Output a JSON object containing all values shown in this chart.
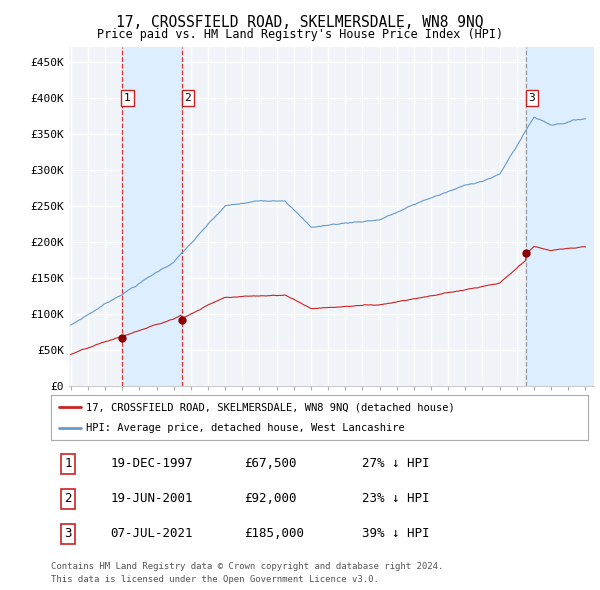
{
  "title": "17, CROSSFIELD ROAD, SKELMERSDALE, WN8 9NQ",
  "subtitle": "Price paid vs. HM Land Registry's House Price Index (HPI)",
  "ylabel_ticks": [
    "£0",
    "£50K",
    "£100K",
    "£150K",
    "£200K",
    "£250K",
    "£300K",
    "£350K",
    "£400K",
    "£450K"
  ],
  "ytick_values": [
    0,
    50000,
    100000,
    150000,
    200000,
    250000,
    300000,
    350000,
    400000,
    450000
  ],
  "xlim_start": 1995.0,
  "xlim_end": 2025.5,
  "ylim": [
    0,
    470000
  ],
  "sale_points": [
    {
      "date": 1997.96,
      "price": 67500,
      "label": "1"
    },
    {
      "date": 2001.47,
      "price": 92000,
      "label": "2"
    },
    {
      "date": 2021.52,
      "price": 185000,
      "label": "3"
    }
  ],
  "red_line_color": "#cc2222",
  "blue_line_color": "#6699cc",
  "vline_color_red": "#dd3333",
  "vline_color_grey": "#999999",
  "sale_marker_color": "#880000",
  "background_color": "#f0f4f8",
  "shade_color": "#ddeeff",
  "grid_color": "#ffffff",
  "legend_entries": [
    "17, CROSSFIELD ROAD, SKELMERSDALE, WN8 9NQ (detached house)",
    "HPI: Average price, detached house, West Lancashire"
  ],
  "table_data": [
    [
      "1",
      "19-DEC-1997",
      "£67,500",
      "27% ↓ HPI"
    ],
    [
      "2",
      "19-JUN-2001",
      "£92,000",
      "23% ↓ HPI"
    ],
    [
      "3",
      "07-JUL-2021",
      "£185,000",
      "39% ↓ HPI"
    ]
  ],
  "footnote1": "Contains HM Land Registry data © Crown copyright and database right 2024.",
  "footnote2": "This data is licensed under the Open Government Licence v3.0."
}
